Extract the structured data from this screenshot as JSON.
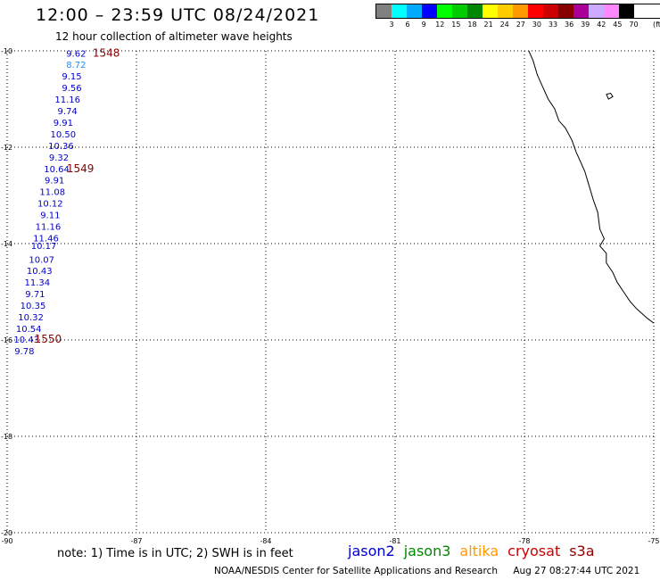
{
  "header": {
    "title": "12:00 – 23:59 UTC 08/24/2021",
    "subtitle": "12 hour collection of altimeter wave heights"
  },
  "legend": {
    "colors": [
      "#808080",
      "#00ffff",
      "#00aaff",
      "#0000ff",
      "#00ff00",
      "#00cc00",
      "#008800",
      "#ffff00",
      "#ffcc00",
      "#ff9900",
      "#ff0000",
      "#cc0000",
      "#880000",
      "#aa0099",
      "#ccaaff",
      "#ff88ff",
      "#000000"
    ],
    "labels": [
      "3",
      "6",
      "9",
      "12",
      "15",
      "18",
      "21",
      "24",
      "27",
      "30",
      "33",
      "36",
      "39",
      "42",
      "45",
      "70"
    ],
    "unit": "(ft)"
  },
  "map": {
    "lon_range": [
      -90,
      -75
    ],
    "lat_range": [
      -20,
      -10
    ],
    "lon_ticks": [
      "-90",
      "-87",
      "-84",
      "-81",
      "-78",
      "-75"
    ],
    "lat_ticks": [
      "-10",
      "-12",
      "-14",
      "-16",
      "-18",
      "-20"
    ],
    "grid": true,
    "observations": [
      {
        "lon": -88.4,
        "lat": -10.05,
        "value": "9.62",
        "color": "#0000cc"
      },
      {
        "lon": -88.4,
        "lat": -10.28,
        "value": "8.72",
        "color": "#1e90ff"
      },
      {
        "lon": -88.5,
        "lat": -10.52,
        "value": "9.15",
        "color": "#0000cc"
      },
      {
        "lon": -88.5,
        "lat": -10.76,
        "value": "9.56",
        "color": "#0000cc"
      },
      {
        "lon": -88.6,
        "lat": -11.0,
        "value": "11.16",
        "color": "#0000cc"
      },
      {
        "lon": -88.6,
        "lat": -11.24,
        "value": "9.74",
        "color": "#0000cc"
      },
      {
        "lon": -88.7,
        "lat": -11.48,
        "value": "9.91",
        "color": "#0000cc"
      },
      {
        "lon": -88.7,
        "lat": -11.72,
        "value": "10.50",
        "color": "#0000cc"
      },
      {
        "lon": -88.75,
        "lat": -11.96,
        "value": "10.36",
        "color": "#0000cc"
      },
      {
        "lon": -88.8,
        "lat": -12.2,
        "value": "9.32",
        "color": "#0000cc"
      },
      {
        "lon": -88.85,
        "lat": -12.44,
        "value": "10.64",
        "color": "#0000cc"
      },
      {
        "lon": -88.9,
        "lat": -12.68,
        "value": "9.91",
        "color": "#0000cc"
      },
      {
        "lon": -88.95,
        "lat": -12.92,
        "value": "11.08",
        "color": "#0000cc"
      },
      {
        "lon": -89.0,
        "lat": -13.16,
        "value": "10.12",
        "color": "#0000cc"
      },
      {
        "lon": -89.0,
        "lat": -13.4,
        "value": "9.11",
        "color": "#0000cc"
      },
      {
        "lon": -89.05,
        "lat": -13.64,
        "value": "11.16",
        "color": "#0000cc"
      },
      {
        "lon": -89.1,
        "lat": -13.88,
        "value": "11.46",
        "color": "#0000cc"
      },
      {
        "lon": -89.15,
        "lat": -14.04,
        "value": "10.17",
        "color": "#0000cc"
      },
      {
        "lon": -89.2,
        "lat": -14.32,
        "value": "10.07",
        "color": "#0000cc"
      },
      {
        "lon": -89.25,
        "lat": -14.56,
        "value": "10.43",
        "color": "#0000cc"
      },
      {
        "lon": -89.3,
        "lat": -14.8,
        "value": "11.34",
        "color": "#0000cc"
      },
      {
        "lon": -89.35,
        "lat": -15.04,
        "value": "9.71",
        "color": "#0000cc"
      },
      {
        "lon": -89.4,
        "lat": -15.28,
        "value": "10.35",
        "color": "#0000cc"
      },
      {
        "lon": -89.45,
        "lat": -15.52,
        "value": "10.32",
        "color": "#0000cc"
      },
      {
        "lon": -89.5,
        "lat": -15.76,
        "value": "10.54",
        "color": "#0000cc"
      },
      {
        "lon": -89.55,
        "lat": -15.98,
        "value": "10.43",
        "color": "#0000cc"
      },
      {
        "lon": -89.6,
        "lat": -16.22,
        "value": "9.78",
        "color": "#0000cc"
      }
    ],
    "time_labels": [
      {
        "lon": -87.7,
        "lat": -10.05,
        "text": "1548"
      },
      {
        "lon": -88.3,
        "lat": -12.44,
        "text": "1549"
      },
      {
        "lon": -89.05,
        "lat": -15.98,
        "text": "1550"
      }
    ],
    "time_label_color": "#880000",
    "coastline": [
      [
        -77.9,
        -10.0
      ],
      [
        -77.8,
        -10.2
      ],
      [
        -77.7,
        -10.5
      ],
      [
        -77.6,
        -10.7
      ],
      [
        -77.45,
        -11.0
      ],
      [
        -77.3,
        -11.2
      ],
      [
        -77.2,
        -11.45
      ],
      [
        -77.05,
        -11.6
      ],
      [
        -76.9,
        -11.85
      ],
      [
        -76.8,
        -12.1
      ],
      [
        -76.7,
        -12.3
      ],
      [
        -76.6,
        -12.5
      ],
      [
        -76.5,
        -12.8
      ],
      [
        -76.4,
        -13.1
      ],
      [
        -76.3,
        -13.35
      ],
      [
        -76.25,
        -13.7
      ],
      [
        -76.15,
        -13.9
      ],
      [
        -76.25,
        -14.05
      ],
      [
        -76.1,
        -14.2
      ],
      [
        -76.1,
        -14.4
      ],
      [
        -75.95,
        -14.6
      ],
      [
        -75.85,
        -14.8
      ],
      [
        -75.7,
        -15.0
      ],
      [
        -75.55,
        -15.2
      ],
      [
        -75.4,
        -15.35
      ],
      [
        -75.15,
        -15.55
      ],
      [
        -75.0,
        -15.65
      ]
    ],
    "island": [
      [
        -76.1,
        -10.9
      ],
      [
        -76.0,
        -10.88
      ],
      [
        -75.95,
        -10.95
      ],
      [
        -76.05,
        -11.0
      ],
      [
        -76.1,
        -10.9
      ]
    ]
  },
  "footer": {
    "note": "note: 1) Time is in UTC; 2) SWH is in feet",
    "satellites": [
      {
        "name": "jason2",
        "color": "#0000cc"
      },
      {
        "name": "jason3",
        "color": "#008800"
      },
      {
        "name": "altika",
        "color": "#ff9900"
      },
      {
        "name": "cryosat",
        "color": "#cc0000"
      },
      {
        "name": "s3a",
        "color": "#880000"
      }
    ],
    "credit": "NOAA/NESDIS Center for Satellite Applications and Research",
    "timestamp": "Aug 27 08:27:44 UTC 2021"
  }
}
